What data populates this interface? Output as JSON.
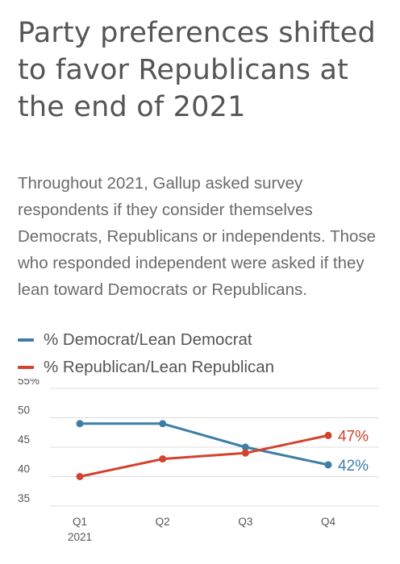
{
  "title": "Party preferences shifted to favor Republicans at the end of 2021",
  "subtitle": "Throughout 2021, Gallup asked survey respondents if they consider themselves Democrats, Republicans or independents. Those who responded independent were asked if they lean toward Democrats or Republicans.",
  "colors": {
    "democrat": "#3d7ea6",
    "republican": "#d2432c",
    "grid": "#dcdcdc"
  },
  "chart_data": {
    "type": "line",
    "categories": [
      "Q1",
      "Q2",
      "Q3",
      "Q4"
    ],
    "category_sublabels": [
      "2021",
      "",
      "",
      ""
    ],
    "ylim": [
      35,
      55
    ],
    "yticks": [
      35,
      40,
      45,
      50,
      55
    ],
    "ytick_labels": [
      "35",
      "40",
      "45",
      "50",
      "55%"
    ],
    "grid": true,
    "legend_position": "top-left",
    "series": [
      {
        "name": "% Democrat/Lean Democrat",
        "values": [
          49,
          49,
          45,
          42
        ],
        "end_label": "42%",
        "color": "#3d7ea6"
      },
      {
        "name": "% Republican/Lean Republican",
        "values": [
          40,
          43,
          44,
          47
        ],
        "end_label": "47%",
        "color": "#d2432c"
      }
    ]
  }
}
